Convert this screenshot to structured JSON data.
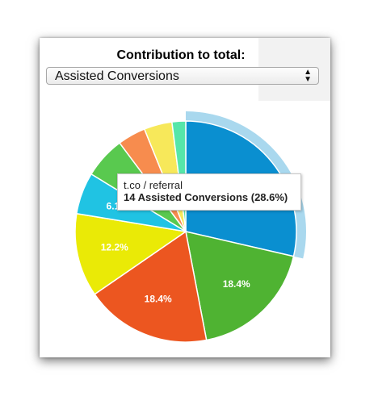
{
  "header": {
    "title": "Contribution to total:"
  },
  "select": {
    "value": "Assisted Conversions",
    "arrows_icon": "up-down-arrows-icon"
  },
  "tooltip": {
    "source": "t.co / referral",
    "detail": "14 Assisted Conversions (28.6%)"
  },
  "chart_data": {
    "type": "pie",
    "slices": [
      {
        "label": "t.co / referral",
        "value": 28.6,
        "color": "#0a8fd0",
        "text": "",
        "highlighted": true
      },
      {
        "label": "",
        "value": 18.4,
        "color": "#4fb332",
        "text": "18.4%"
      },
      {
        "label": "",
        "value": 18.4,
        "color": "#ec5620",
        "text": "18.4%"
      },
      {
        "label": "",
        "value": 12.2,
        "color": "#eaea06",
        "text": "12.2%"
      },
      {
        "label": "",
        "value": 6.1,
        "color": "#20c3e3",
        "text": "6.1%"
      },
      {
        "label": "",
        "value": 6.1,
        "color": "#59c94f",
        "text": ""
      },
      {
        "label": "",
        "value": 4.1,
        "color": "#f78c4e",
        "text": ""
      },
      {
        "label": "",
        "value": 4.1,
        "color": "#f7e85a",
        "text": ""
      },
      {
        "label": "",
        "value": 2.0,
        "color": "#56e6a9",
        "text": ""
      }
    ]
  }
}
